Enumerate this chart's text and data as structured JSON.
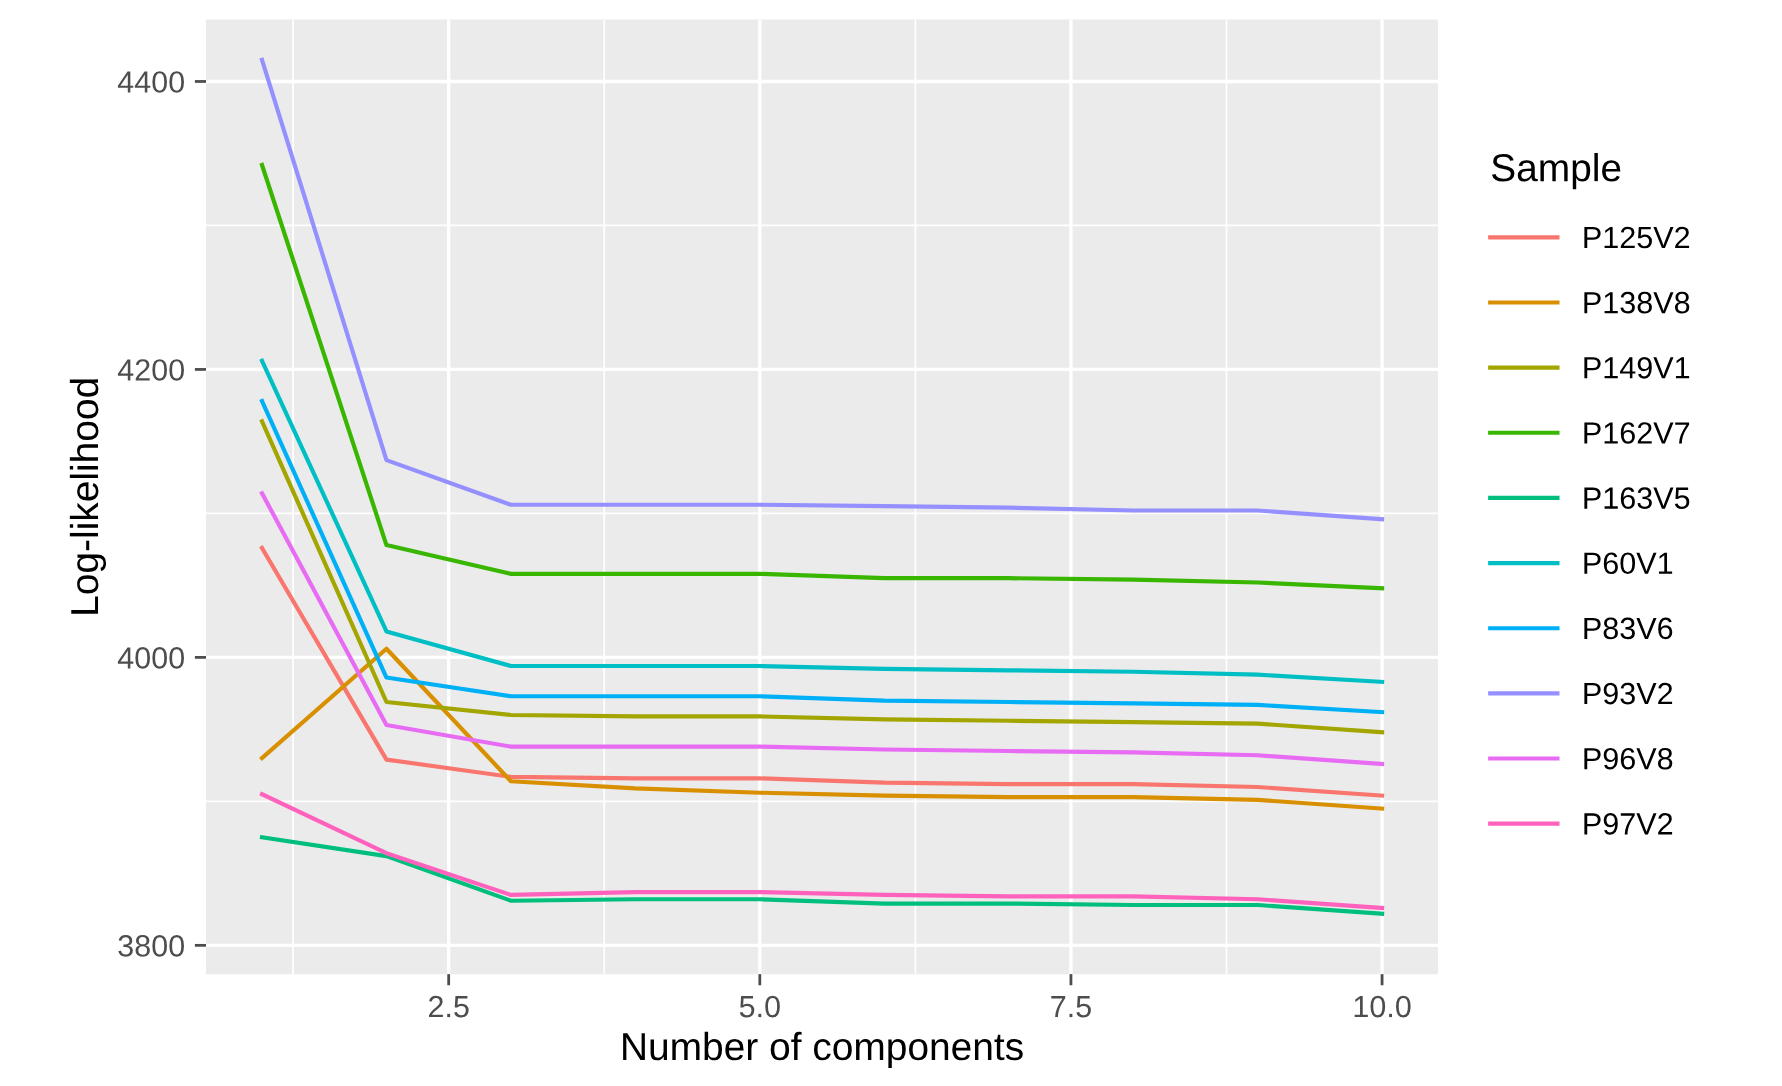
{
  "chart_data": {
    "type": "line",
    "xlabel": "Number of components",
    "ylabel": "Log-likelihood",
    "legend_title": "Sample",
    "legend": "right",
    "grid": true,
    "marker": "none",
    "line_style": "solid",
    "x": [
      1,
      2,
      3,
      4,
      5,
      6,
      7,
      8,
      9,
      10
    ],
    "xlim": [
      0.55,
      10.45
    ],
    "xticks": [
      {
        "value": 2.5,
        "label": "2.5"
      },
      {
        "value": 5,
        "label": "5.0"
      },
      {
        "value": 7.5,
        "label": "7.5"
      },
      {
        "value": 10,
        "label": "10.0"
      }
    ],
    "ylim": [
      3780,
      4443
    ],
    "yticks": [
      3800,
      4000,
      4200,
      4400
    ],
    "series": [
      {
        "name": "P125V2",
        "color": "#f8766d",
        "values": [
          4076,
          3929,
          3917,
          3916,
          3916,
          3913,
          3912,
          3912,
          3910,
          3904
        ]
      },
      {
        "name": "P138V8",
        "color": "#d89000",
        "values": [
          3930,
          4006,
          3914,
          3909,
          3906,
          3904,
          3903,
          3903,
          3901,
          3895
        ]
      },
      {
        "name": "P149V1",
        "color": "#a3a500",
        "values": [
          4164,
          3969,
          3960,
          3959,
          3959,
          3957,
          3956,
          3955,
          3954,
          3948
        ]
      },
      {
        "name": "P162V7",
        "color": "#39b600",
        "values": [
          4342,
          4078,
          4058,
          4058,
          4058,
          4055,
          4055,
          4054,
          4052,
          4048
        ]
      },
      {
        "name": "P163V5",
        "color": "#00bf7d",
        "values": [
          3875,
          3862,
          3831,
          3832,
          3832,
          3829,
          3829,
          3828,
          3828,
          3822
        ]
      },
      {
        "name": "P60V1",
        "color": "#00bfc4",
        "values": [
          4206,
          4018,
          3994,
          3994,
          3994,
          3992,
          3991,
          3990,
          3988,
          3983
        ]
      },
      {
        "name": "P83V6",
        "color": "#00b0f6",
        "values": [
          4178,
          3986,
          3973,
          3973,
          3973,
          3970,
          3969,
          3968,
          3967,
          3962
        ]
      },
      {
        "name": "P93V2",
        "color": "#9590ff",
        "values": [
          4415,
          4137,
          4106,
          4106,
          4106,
          4105,
          4104,
          4102,
          4102,
          4096
        ]
      },
      {
        "name": "P96V8",
        "color": "#e76bf3",
        "values": [
          4114,
          3953,
          3938,
          3938,
          3938,
          3936,
          3935,
          3934,
          3932,
          3926
        ]
      },
      {
        "name": "P97V2",
        "color": "#ff62bc",
        "values": [
          3905,
          3864,
          3835,
          3837,
          3837,
          3835,
          3834,
          3834,
          3832,
          3826
        ]
      }
    ]
  }
}
